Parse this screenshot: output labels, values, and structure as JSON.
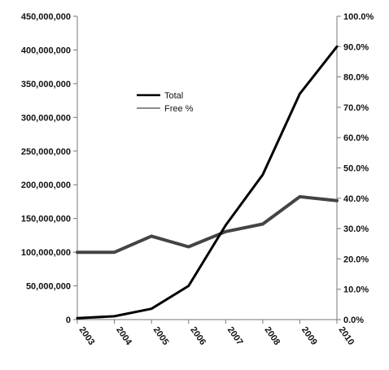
{
  "chart_data": {
    "type": "line",
    "categories": [
      "2003",
      "2004",
      "2005",
      "2006",
      "2007",
      "2008",
      "2009",
      "2010"
    ],
    "series": [
      {
        "name": "Total",
        "axis": "left",
        "color": "#000000",
        "values": [
          2000000,
          5000000,
          16000000,
          50000000,
          140000000,
          215000000,
          335000000,
          405000000
        ]
      },
      {
        "name": "Free %",
        "axis": "right",
        "color": "#444444",
        "values": [
          22.2,
          22.2,
          27.5,
          24.0,
          29.0,
          31.5,
          40.5,
          39.2
        ]
      }
    ],
    "left_axis": {
      "ylim": [
        0,
        450000000
      ],
      "ticks": [
        "0",
        "50,000,000",
        "100,000,000",
        "150,000,000",
        "200,000,000",
        "250,000,000",
        "300,000,000",
        "350,000,000",
        "400,000,000",
        "450,000,000"
      ]
    },
    "right_axis": {
      "ylim": [
        0,
        100
      ],
      "ticks": [
        "0.0%",
        "10.0%",
        "20.0%",
        "30.0%",
        "40.0%",
        "50.0%",
        "60.0%",
        "70.0%",
        "80.0%",
        "90.0%",
        "100.0%"
      ]
    },
    "legend": {
      "placement": "inside-left",
      "entries": [
        "Total",
        "Free %"
      ]
    },
    "grid": false
  }
}
